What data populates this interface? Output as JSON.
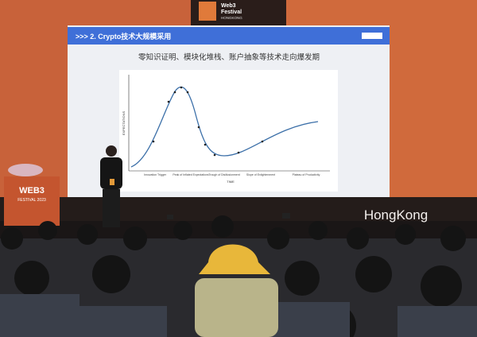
{
  "banner": {
    "line1": "Web3",
    "line2": "Festival",
    "line3": "HONGKONG"
  },
  "slide": {
    "title": ">>> 2. Crypto技术大规模采用",
    "subtitle": "零知识证明、模块化堆栈、账户抽象等技术走向爆发期",
    "y_axis": "EXPECTATIONS",
    "x_axis": "TIME",
    "phases": [
      "Innovation Trigger",
      "Peak of Inflated Expectations",
      "Trough of Disillusionment",
      "Slope of Enlightenment",
      "Plateau of Productivity"
    ]
  },
  "podium": {
    "title": "WEB3",
    "subtitle": "FESTIVAL 2023"
  },
  "sign": "HongKong"
}
